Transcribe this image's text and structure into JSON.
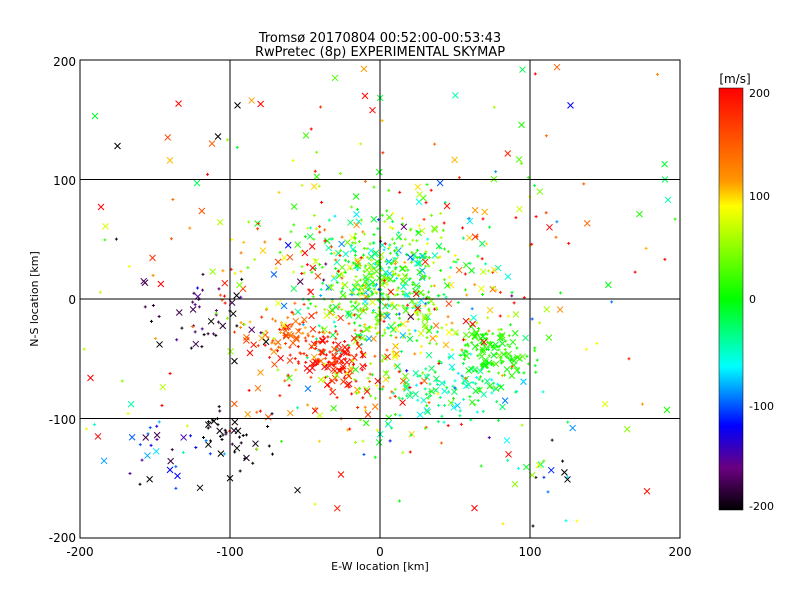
{
  "chart_data": {
    "type": "scatter",
    "title": "Tromsø 20170804 00:52:00-00:53:43",
    "subtitle": "RwPretec (8p) EXPERIMENTAL SKYMAP",
    "xlabel": "E-W location [km]",
    "ylabel": "N-S location [km]",
    "xlim": [
      -200,
      200
    ],
    "ylim": [
      -200,
      200
    ],
    "xticks": [
      "-200",
      "-100",
      "0",
      "100",
      "200"
    ],
    "yticks": [
      "-200",
      "-100",
      "0",
      "100",
      "200"
    ],
    "grid": true,
    "colorbar": {
      "label": "[m/s]",
      "range": [
        -200,
        200
      ],
      "ticks": [
        "-200",
        "-100",
        "0",
        "100",
        "200"
      ],
      "colormap": "rainbow (black-purple-blue-cyan-green-yellow-red)",
      "placement": "right"
    },
    "markers": [
      "x (large)",
      "+ (small)"
    ],
    "clusters": [
      {
        "x": 0,
        "y": 15,
        "sx": 22,
        "sy": 25,
        "n": 380,
        "v": 10,
        "vs": 45
      },
      {
        "x": 10,
        "y": -20,
        "sx": 30,
        "sy": 25,
        "n": 140,
        "v": 40,
        "vs": 70
      },
      {
        "x": -35,
        "y": -50,
        "sx": 14,
        "sy": 12,
        "n": 140,
        "v": 185,
        "vs": 15
      },
      {
        "x": -65,
        "y": -30,
        "sx": 14,
        "sy": 10,
        "n": 70,
        "v": 145,
        "vs": 25
      },
      {
        "x": 78,
        "y": -45,
        "sx": 12,
        "sy": 12,
        "n": 130,
        "v": 10,
        "vs": 12
      },
      {
        "x": 45,
        "y": -75,
        "sx": 25,
        "sy": 15,
        "n": 120,
        "v": -30,
        "vs": 25
      },
      {
        "x": -100,
        "y": -115,
        "sx": 12,
        "sy": 12,
        "n": 40,
        "v": -200,
        "vs": 8
      },
      {
        "x": -120,
        "y": -10,
        "sx": 25,
        "sy": 20,
        "n": 50,
        "v": -180,
        "vs": 20
      },
      {
        "x": -15,
        "y": -80,
        "sx": 30,
        "sy": 25,
        "n": 100,
        "v": 100,
        "vs": 80
      },
      {
        "x": -60,
        "y": 30,
        "sx": 40,
        "sy": 25,
        "n": 70,
        "v": 120,
        "vs": 80
      },
      {
        "x": 60,
        "y": 30,
        "sx": 40,
        "sy": 35,
        "n": 100,
        "v": 80,
        "vs": 100
      },
      {
        "x": 0,
        "y": 0,
        "sx": 110,
        "sy": 110,
        "n": 220,
        "v": 80,
        "vs": 100
      },
      {
        "x": -150,
        "y": -130,
        "sx": 20,
        "sy": 15,
        "n": 25,
        "v": -120,
        "vs": 60
      },
      {
        "x": 110,
        "y": -130,
        "sx": 20,
        "sy": 20,
        "n": 20,
        "v": -80,
        "vs": 120
      }
    ],
    "points": [
      {
        "x": -95,
        "y": 162,
        "v": -200,
        "m": "x"
      },
      {
        "x": -108,
        "y": 136,
        "v": -200,
        "m": "x"
      },
      {
        "x": -175,
        "y": 128,
        "v": -200,
        "m": "x"
      },
      {
        "x": -190,
        "y": 153,
        "v": -10,
        "m": "x"
      },
      {
        "x": -112,
        "y": 130,
        "v": 150,
        "m": "x"
      },
      {
        "x": -140,
        "y": 116,
        "v": 110,
        "m": "x"
      },
      {
        "x": -122,
        "y": 97,
        "v": -20,
        "m": "x"
      },
      {
        "x": -186,
        "y": 77,
        "v": 200,
        "m": "x"
      },
      {
        "x": 95,
        "y": 192,
        "v": -20,
        "m": "x"
      },
      {
        "x": 127,
        "y": 162,
        "v": -120,
        "m": "x"
      },
      {
        "x": 118,
        "y": 194,
        "v": 150,
        "m": "x"
      },
      {
        "x": 190,
        "y": 100,
        "v": -20,
        "m": "x"
      },
      {
        "x": 173,
        "y": 71,
        "v": 10,
        "m": "x"
      },
      {
        "x": 192,
        "y": 83,
        "v": -40,
        "m": "x"
      },
      {
        "x": -193,
        "y": -66,
        "v": 200,
        "m": "x"
      },
      {
        "x": -188,
        "y": -115,
        "v": 200,
        "m": "x"
      },
      {
        "x": -155,
        "y": -131,
        "v": -80,
        "m": "x"
      },
      {
        "x": -140,
        "y": -143,
        "v": -120,
        "m": "x"
      },
      {
        "x": -135,
        "y": -148,
        "v": -120,
        "m": "x"
      },
      {
        "x": -120,
        "y": -158,
        "v": -200,
        "m": "x"
      },
      {
        "x": -100,
        "y": -150,
        "v": -200,
        "m": "x"
      },
      {
        "x": 125,
        "y": -151,
        "v": -200,
        "m": "x"
      },
      {
        "x": 113,
        "y": 60,
        "v": 200,
        "m": "x"
      },
      {
        "x": 63,
        "y": -175,
        "v": 200,
        "m": "x"
      },
      {
        "x": 90,
        "y": -155,
        "v": 50,
        "m": "x"
      },
      {
        "x": -55,
        "y": -160,
        "v": -200,
        "m": "x"
      },
      {
        "x": -30,
        "y": 185,
        "v": 30,
        "m": "x"
      },
      {
        "x": -10,
        "y": 170,
        "v": 200,
        "m": "x"
      },
      {
        "x": -5,
        "y": 158,
        "v": 200,
        "m": "x"
      },
      {
        "x": -160,
        "y": -155,
        "v": -200,
        "m": "+"
      },
      {
        "x": 102,
        "y": -190,
        "v": -200,
        "m": "+"
      },
      {
        "x": 150,
        "y": -88,
        "v": 80,
        "m": "x"
      },
      {
        "x": 175,
        "y": -88,
        "v": 120,
        "m": "+"
      },
      {
        "x": 185,
        "y": 188,
        "v": 130,
        "m": "+"
      }
    ]
  }
}
